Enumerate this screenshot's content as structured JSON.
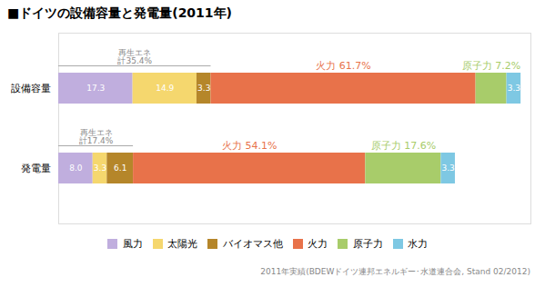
{
  "chart_data": {
    "type": "bar",
    "orientation": "horizontal",
    "stacked": true,
    "title": "■ドイツの設備容量と発電量(2011年)",
    "categories": [
      "設備容量",
      "発電量"
    ],
    "series": [
      {
        "name": "風力",
        "color": "#C0AEDE",
        "values": [
          17.3,
          8.0
        ],
        "value_labels": [
          "17.3",
          "8.0"
        ]
      },
      {
        "name": "太陽光",
        "color": "#F5D76E",
        "values": [
          14.9,
          3.3
        ],
        "value_labels": [
          "14.9",
          "3.3"
        ]
      },
      {
        "name": "バイオマス他",
        "color": "#B5862A",
        "values": [
          3.3,
          6.1
        ],
        "value_labels": [
          "3.3",
          "6.1"
        ]
      },
      {
        "name": "火力",
        "color": "#E8724A",
        "values": [
          61.7,
          54.1
        ],
        "value_labels": [
          null,
          null
        ]
      },
      {
        "name": "原子力",
        "color": "#A8CC6A",
        "values": [
          7.2,
          17.6
        ],
        "value_labels": [
          null,
          null
        ]
      },
      {
        "name": "水力",
        "color": "#7EC8E3",
        "values": [
          3.3,
          3.3
        ],
        "value_labels": [
          "3.3",
          "3.3"
        ]
      }
    ],
    "xlim": [
      0,
      110
    ],
    "tick_labels": "y",
    "data_labels": true,
    "grid": false,
    "legend": "bottom",
    "annotations": [
      {
        "text": "再生エネ\n計35.4%",
        "category": "設備容量",
        "series": [
          "風力",
          "太陽光",
          "バイオマス他"
        ]
      },
      {
        "text": "再生エネ\n計17.4%",
        "category": "発電量",
        "series": [
          "風力",
          "太陽光",
          "バイオマス他"
        ]
      },
      {
        "text": "火力 61.7%",
        "category": "設備容量",
        "series": "火力"
      },
      {
        "text": "原子力 7.2%",
        "category": "設備容量",
        "series": "原子力"
      },
      {
        "text": "火力 54.1%",
        "category": "発電量",
        "series": "火力"
      },
      {
        "text": "原子力 17.6%",
        "category": "発電量",
        "series": "原子力"
      }
    ],
    "caption": "2011年実績(BDEWドイツ連邦エネルギー･水道連合会, Stand 02/2012)"
  }
}
